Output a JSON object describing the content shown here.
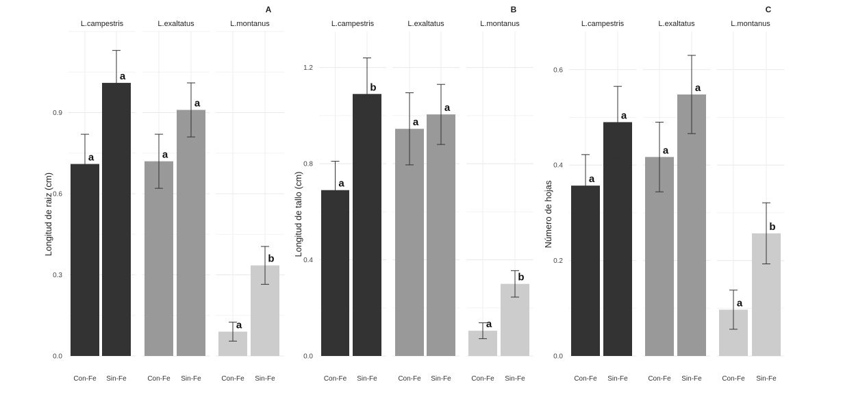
{
  "chart_data": [
    {
      "type": "bar",
      "panel": "A",
      "ylabel": "Longitud de raiz (cm)",
      "ylim": [
        0,
        1.2
      ],
      "yticks": [
        0.0,
        0.3,
        0.6,
        0.9
      ],
      "ytick_labels": [
        "0.0",
        "0.3",
        "0.6",
        "0.9"
      ],
      "species": [
        "L.campestris",
        "L.exaltatus",
        "L.montanus"
      ],
      "categories": [
        "Con-Fe",
        "Sin-Fe"
      ],
      "bar_colors": [
        "#333333",
        "#999999",
        "#cccccc"
      ],
      "series": [
        {
          "name": "L.campestris",
          "values": [
            0.71,
            1.01
          ],
          "err": [
            0.11,
            0.12
          ],
          "letters": [
            "a",
            "a"
          ]
        },
        {
          "name": "L.exaltatus",
          "values": [
            0.72,
            0.91
          ],
          "err": [
            0.1,
            0.1
          ],
          "letters": [
            "a",
            "a"
          ]
        },
        {
          "name": "L.montanus",
          "values": [
            0.09,
            0.335
          ],
          "err": [
            0.035,
            0.07
          ],
          "letters": [
            "a",
            "b"
          ]
        }
      ]
    },
    {
      "type": "bar",
      "panel": "B",
      "ylabel": "Longitud de tallo (cm)",
      "ylim": [
        0,
        1.35
      ],
      "yticks": [
        0.0,
        0.4,
        0.8,
        1.2
      ],
      "ytick_labels": [
        "0.0",
        "0.4",
        "0.8",
        "1.2"
      ],
      "species": [
        "L.campestris",
        "L.exaltatus",
        "L.montanus"
      ],
      "categories": [
        "Con-Fe",
        "Sin-Fe"
      ],
      "bar_colors": [
        "#333333",
        "#999999",
        "#cccccc"
      ],
      "series": [
        {
          "name": "L.campestris",
          "values": [
            0.69,
            1.09
          ],
          "err": [
            0.12,
            0.15
          ],
          "letters": [
            "a",
            "b"
          ]
        },
        {
          "name": "L.exaltatus",
          "values": [
            0.945,
            1.005
          ],
          "err": [
            0.15,
            0.125
          ],
          "letters": [
            "a",
            "a"
          ]
        },
        {
          "name": "L.montanus",
          "values": [
            0.105,
            0.3
          ],
          "err": [
            0.033,
            0.055
          ],
          "letters": [
            "a",
            "b"
          ]
        }
      ]
    },
    {
      "type": "bar",
      "panel": "C",
      "ylabel": "Número de hojas",
      "ylim": [
        0,
        0.68
      ],
      "yticks": [
        0.0,
        0.2,
        0.4,
        0.6
      ],
      "ytick_labels": [
        "0.0",
        "0.2",
        "0.4",
        "0.6"
      ],
      "species": [
        "L.campestris",
        "L.exaltatus",
        "L.montanus"
      ],
      "categories": [
        "Con-Fe",
        "Sin-Fe"
      ],
      "bar_colors": [
        "#333333",
        "#999999",
        "#cccccc"
      ],
      "series": [
        {
          "name": "L.campestris",
          "values": [
            0.357,
            0.49
          ],
          "err": [
            0.065,
            0.075
          ],
          "letters": [
            "a",
            "a"
          ]
        },
        {
          "name": "L.exaltatus",
          "values": [
            0.417,
            0.548
          ],
          "err": [
            0.073,
            0.082
          ],
          "letters": [
            "a",
            "a"
          ]
        },
        {
          "name": "L.montanus",
          "values": [
            0.097,
            0.257
          ],
          "err": [
            0.041,
            0.064
          ],
          "letters": [
            "a",
            "b"
          ]
        }
      ]
    }
  ]
}
